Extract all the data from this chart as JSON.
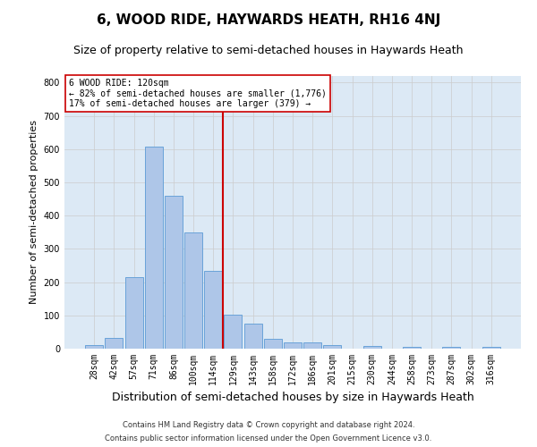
{
  "title": "6, WOOD RIDE, HAYWARDS HEATH, RH16 4NJ",
  "subtitle": "Size of property relative to semi-detached houses in Haywards Heath",
  "xlabel": "Distribution of semi-detached houses by size in Haywards Heath",
  "ylabel": "Number of semi-detached properties",
  "footnote1": "Contains HM Land Registry data © Crown copyright and database right 2024.",
  "footnote2": "Contains public sector information licensed under the Open Government Licence v3.0.",
  "categories": [
    "28sqm",
    "42sqm",
    "57sqm",
    "71sqm",
    "86sqm",
    "100sqm",
    "114sqm",
    "129sqm",
    "143sqm",
    "158sqm",
    "172sqm",
    "186sqm",
    "201sqm",
    "215sqm",
    "230sqm",
    "244sqm",
    "258sqm",
    "273sqm",
    "287sqm",
    "302sqm",
    "316sqm"
  ],
  "values": [
    12,
    32,
    215,
    608,
    460,
    350,
    235,
    102,
    75,
    30,
    18,
    18,
    10,
    0,
    9,
    0,
    5,
    0,
    5,
    0,
    5
  ],
  "bar_color": "#aec6e8",
  "bar_edge_color": "#5b9bd5",
  "highlight_index": 6,
  "annotation_text": "6 WOOD RIDE: 120sqm\n← 82% of semi-detached houses are smaller (1,776)\n17% of semi-detached houses are larger (379) →",
  "annotation_box_color": "#ffffff",
  "annotation_box_edge_color": "#cc0000",
  "vline_color": "#cc0000",
  "ylim": [
    0,
    820
  ],
  "yticks": [
    0,
    100,
    200,
    300,
    400,
    500,
    600,
    700,
    800
  ],
  "grid_color": "#cccccc",
  "bg_color": "#dce9f5",
  "title_fontsize": 11,
  "subtitle_fontsize": 9,
  "xlabel_fontsize": 9,
  "ylabel_fontsize": 8,
  "tick_fontsize": 7,
  "annot_fontsize": 7,
  "footnote_fontsize": 6
}
